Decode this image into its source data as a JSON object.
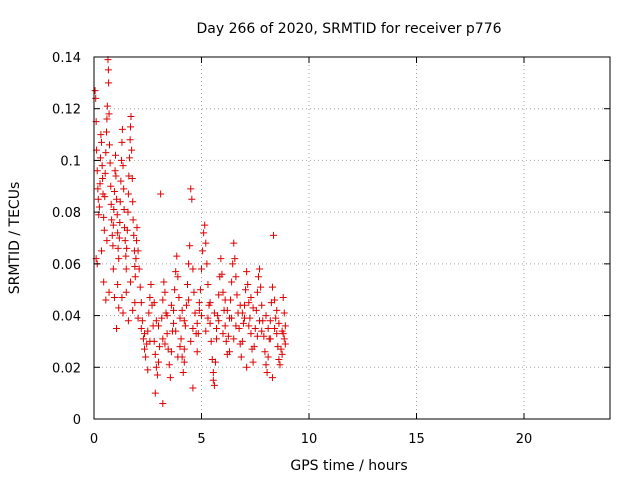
{
  "chart_data": {
    "type": "scatter",
    "title": "Day 266 of 2020, SRMTID for receiver p776",
    "xlabel": "GPS time / hours",
    "ylabel": "SRMTID / TECUs",
    "xlim": [
      0,
      24
    ],
    "ylim": [
      0,
      0.14
    ],
    "xticks": [
      0,
      5,
      10,
      15,
      20
    ],
    "xtick_labels": [
      "0",
      "5",
      "10",
      "15",
      "20"
    ],
    "yticks": [
      0,
      0.02,
      0.04,
      0.06,
      0.08,
      0.1,
      0.12,
      0.14
    ],
    "ytick_labels": [
      "0",
      "0.02",
      "0.04",
      "0.06",
      "0.08",
      "0.1",
      "0.12",
      "0.14"
    ],
    "grid": true,
    "marker": "+",
    "marker_color": "#e00000",
    "series": [
      {
        "name": "SRMTID",
        "points": [
          [
            0.05,
            0.127
          ],
          [
            0.08,
            0.124
          ],
          [
            0.1,
            0.115
          ],
          [
            0.12,
            0.104
          ],
          [
            0.15,
            0.096
          ],
          [
            0.18,
            0.089
          ],
          [
            0.2,
            0.085
          ],
          [
            0.22,
            0.079
          ],
          [
            0.25,
            0.082
          ],
          [
            0.28,
            0.091
          ],
          [
            0.3,
            0.101
          ],
          [
            0.32,
            0.11
          ],
          [
            0.35,
            0.107
          ],
          [
            0.38,
            0.098
          ],
          [
            0.4,
            0.093
          ],
          [
            0.42,
            0.087
          ],
          [
            0.45,
            0.078
          ],
          [
            0.48,
            0.073
          ],
          [
            0.5,
            0.086
          ],
          [
            0.52,
            0.095
          ],
          [
            0.55,
            0.103
          ],
          [
            0.58,
            0.111
          ],
          [
            0.6,
            0.116
          ],
          [
            0.62,
            0.121
          ],
          [
            0.65,
            0.139
          ],
          [
            0.67,
            0.135
          ],
          [
            0.68,
            0.13
          ],
          [
            0.7,
            0.118
          ],
          [
            0.72,
            0.106
          ],
          [
            0.75,
            0.099
          ],
          [
            0.78,
            0.09
          ],
          [
            0.8,
            0.083
          ],
          [
            0.82,
            0.077
          ],
          [
            0.85,
            0.071
          ],
          [
            0.88,
            0.067
          ],
          [
            0.9,
            0.075
          ],
          [
            0.92,
            0.081
          ],
          [
            0.95,
            0.088
          ],
          [
            0.98,
            0.096
          ],
          [
            1.0,
            0.102
          ],
          [
            1.02,
            0.094
          ],
          [
            1.05,
            0.085
          ],
          [
            1.08,
            0.079
          ],
          [
            1.1,
            0.072
          ],
          [
            1.12,
            0.066
          ],
          [
            1.15,
            0.062
          ],
          [
            1.18,
            0.07
          ],
          [
            1.2,
            0.076
          ],
          [
            1.22,
            0.084
          ],
          [
            1.25,
            0.092
          ],
          [
            1.28,
            0.1
          ],
          [
            1.3,
            0.107
          ],
          [
            1.32,
            0.112
          ],
          [
            1.35,
            0.098
          ],
          [
            1.38,
            0.089
          ],
          [
            1.4,
            0.081
          ],
          [
            1.42,
            0.074
          ],
          [
            1.45,
            0.069
          ],
          [
            1.48,
            0.063
          ],
          [
            1.5,
            0.058
          ],
          [
            1.52,
            0.066
          ],
          [
            1.55,
            0.073
          ],
          [
            1.58,
            0.08
          ],
          [
            1.6,
            0.087
          ],
          [
            1.62,
            0.094
          ],
          [
            1.65,
            0.101
          ],
          [
            1.68,
            0.108
          ],
          [
            1.7,
            0.113
          ],
          [
            1.72,
            0.117
          ],
          [
            1.75,
            0.104
          ],
          [
            1.78,
            0.093
          ],
          [
            1.8,
            0.084
          ],
          [
            1.82,
            0.077
          ],
          [
            1.85,
            0.071
          ],
          [
            1.88,
            0.065
          ],
          [
            1.9,
            0.059
          ],
          [
            1.92,
            0.055
          ],
          [
            1.95,
            0.062
          ],
          [
            1.98,
            0.069
          ],
          [
            2.0,
            0.074
          ],
          [
            0.1,
            0.062
          ],
          [
            0.15,
            0.06
          ],
          [
            0.35,
            0.065
          ],
          [
            0.6,
            0.069
          ],
          [
            0.9,
            0.058
          ],
          [
            1.1,
            0.052
          ],
          [
            1.3,
            0.047
          ],
          [
            1.5,
            0.049
          ],
          [
            1.7,
            0.053
          ],
          [
            1.9,
            0.045
          ],
          [
            0.45,
            0.053
          ],
          [
            0.7,
            0.049
          ],
          [
            0.95,
            0.047
          ],
          [
            1.15,
            0.043
          ],
          [
            1.35,
            0.041
          ],
          [
            1.6,
            0.038
          ],
          [
            1.8,
            0.042
          ],
          [
            2.05,
            0.039
          ],
          [
            0.55,
            0.046
          ],
          [
            1.05,
            0.035
          ],
          [
            2.05,
            0.065
          ],
          [
            2.1,
            0.058
          ],
          [
            2.15,
            0.051
          ],
          [
            2.2,
            0.045
          ],
          [
            2.25,
            0.038
          ],
          [
            2.3,
            0.031
          ],
          [
            2.35,
            0.027
          ],
          [
            2.4,
            0.024
          ],
          [
            2.45,
            0.029
          ],
          [
            2.5,
            0.034
          ],
          [
            2.55,
            0.041
          ],
          [
            2.6,
            0.047
          ],
          [
            2.65,
            0.052
          ],
          [
            2.7,
            0.044
          ],
          [
            2.75,
            0.036
          ],
          [
            2.8,
            0.03
          ],
          [
            2.85,
            0.025
          ],
          [
            2.9,
            0.02
          ],
          [
            2.95,
            0.017
          ],
          [
            3.0,
            0.022
          ],
          [
            3.05,
            0.028
          ],
          [
            3.1,
            0.087
          ],
          [
            3.15,
            0.039
          ],
          [
            3.2,
            0.046
          ],
          [
            3.25,
            0.053
          ],
          [
            3.3,
            0.049
          ],
          [
            3.35,
            0.041
          ],
          [
            3.4,
            0.033
          ],
          [
            3.45,
            0.027
          ],
          [
            3.5,
            0.021
          ],
          [
            3.55,
            0.016
          ],
          [
            3.6,
            0.026
          ],
          [
            3.65,
            0.034
          ],
          [
            3.7,
            0.042
          ],
          [
            3.75,
            0.05
          ],
          [
            3.8,
            0.057
          ],
          [
            3.85,
            0.063
          ],
          [
            3.9,
            0.055
          ],
          [
            3.95,
            0.047
          ],
          [
            4.0,
            0.039
          ],
          [
            4.05,
            0.031
          ],
          [
            4.1,
            0.024
          ],
          [
            4.15,
            0.018
          ],
          [
            4.2,
            0.027
          ],
          [
            4.25,
            0.036
          ],
          [
            4.3,
            0.044
          ],
          [
            4.35,
            0.052
          ],
          [
            4.4,
            0.06
          ],
          [
            4.45,
            0.067
          ],
          [
            4.5,
            0.089
          ],
          [
            4.55,
            0.085
          ],
          [
            4.6,
            0.058
          ],
          [
            4.65,
            0.049
          ],
          [
            4.7,
            0.041
          ],
          [
            4.75,
            0.033
          ],
          [
            4.8,
            0.026
          ],
          [
            4.85,
            0.033
          ],
          [
            4.9,
            0.042
          ],
          [
            4.95,
            0.05
          ],
          [
            5.0,
            0.058
          ],
          [
            5.05,
            0.065
          ],
          [
            5.1,
            0.072
          ],
          [
            5.15,
            0.075
          ],
          [
            5.2,
            0.068
          ],
          [
            5.25,
            0.06
          ],
          [
            5.3,
            0.052
          ],
          [
            5.35,
            0.044
          ],
          [
            5.4,
            0.037
          ],
          [
            5.45,
            0.03
          ],
          [
            5.5,
            0.023
          ],
          [
            5.55,
            0.018
          ],
          [
            5.6,
            0.013
          ],
          [
            5.65,
            0.022
          ],
          [
            5.7,
            0.031
          ],
          [
            5.75,
            0.04
          ],
          [
            5.8,
            0.048
          ],
          [
            5.85,
            0.055
          ],
          [
            5.9,
            0.062
          ],
          [
            5.95,
            0.056
          ],
          [
            6.0,
            0.049
          ],
          [
            6.05,
            0.042
          ],
          [
            6.1,
            0.036
          ],
          [
            6.15,
            0.03
          ],
          [
            6.2,
            0.025
          ],
          [
            6.25,
            0.032
          ],
          [
            6.3,
            0.039
          ],
          [
            6.35,
            0.046
          ],
          [
            6.4,
            0.053
          ],
          [
            6.45,
            0.06
          ],
          [
            6.5,
            0.068
          ],
          [
            6.55,
            0.062
          ],
          [
            6.6,
            0.055
          ],
          [
            6.65,
            0.048
          ],
          [
            6.7,
            0.041
          ],
          [
            6.75,
            0.035
          ],
          [
            6.8,
            0.029
          ],
          [
            6.85,
            0.024
          ],
          [
            6.9,
            0.03
          ],
          [
            6.95,
            0.037
          ],
          [
            7.0,
            0.044
          ],
          [
            7.05,
            0.05
          ],
          [
            7.1,
            0.057
          ],
          [
            7.15,
            0.052
          ],
          [
            7.2,
            0.045
          ],
          [
            7.25,
            0.039
          ],
          [
            7.3,
            0.033
          ],
          [
            7.35,
            0.027
          ],
          [
            7.4,
            0.022
          ],
          [
            7.45,
            0.028
          ],
          [
            7.5,
            0.035
          ],
          [
            7.55,
            0.042
          ],
          [
            7.6,
            0.049
          ],
          [
            7.65,
            0.055
          ],
          [
            7.7,
            0.058
          ],
          [
            7.75,
            0.051
          ],
          [
            7.8,
            0.044
          ],
          [
            7.85,
            0.038
          ],
          [
            7.9,
            0.032
          ],
          [
            7.95,
            0.026
          ],
          [
            8.0,
            0.021
          ],
          [
            8.05,
            0.018
          ],
          [
            8.1,
            0.024
          ],
          [
            8.15,
            0.031
          ],
          [
            8.2,
            0.038
          ],
          [
            8.25,
            0.045
          ],
          [
            8.3,
            0.051
          ],
          [
            8.35,
            0.071
          ],
          [
            8.4,
            0.046
          ],
          [
            8.45,
            0.039
          ],
          [
            8.5,
            0.033
          ],
          [
            8.55,
            0.028
          ],
          [
            8.6,
            0.023
          ],
          [
            8.65,
            0.021
          ],
          [
            8.7,
            0.027
          ],
          [
            8.75,
            0.034
          ],
          [
            8.8,
            0.047
          ],
          [
            8.85,
            0.031
          ],
          [
            8.9,
            0.036
          ],
          [
            8.85,
            0.041
          ],
          [
            8.75,
            0.025
          ],
          [
            2.2,
            0.035
          ],
          [
            2.6,
            0.03
          ],
          [
            3.0,
            0.036
          ],
          [
            3.4,
            0.04
          ],
          [
            3.8,
            0.034
          ],
          [
            4.2,
            0.038
          ],
          [
            4.6,
            0.035
          ],
          [
            5.0,
            0.04
          ],
          [
            5.4,
            0.045
          ],
          [
            5.8,
            0.038
          ],
          [
            6.2,
            0.042
          ],
          [
            6.6,
            0.036
          ],
          [
            7.0,
            0.039
          ],
          [
            7.4,
            0.043
          ],
          [
            7.8,
            0.034
          ],
          [
            8.2,
            0.031
          ],
          [
            8.6,
            0.037
          ],
          [
            2.8,
            0.045
          ],
          [
            3.2,
            0.031
          ],
          [
            3.6,
            0.044
          ],
          [
            4.0,
            0.028
          ],
          [
            4.4,
            0.046
          ],
          [
            4.8,
            0.037
          ],
          [
            5.2,
            0.034
          ],
          [
            5.6,
            0.041
          ],
          [
            6.0,
            0.033
          ],
          [
            6.4,
            0.039
          ],
          [
            6.8,
            0.044
          ],
          [
            7.2,
            0.036
          ],
          [
            7.6,
            0.032
          ],
          [
            8.0,
            0.04
          ],
          [
            8.4,
            0.035
          ],
          [
            8.8,
            0.033
          ],
          [
            2.35,
            0.033
          ],
          [
            2.9,
            0.038
          ],
          [
            3.3,
            0.029
          ],
          [
            3.7,
            0.037
          ],
          [
            4.1,
            0.042
          ],
          [
            4.5,
            0.03
          ],
          [
            4.9,
            0.045
          ],
          [
            5.3,
            0.039
          ],
          [
            5.7,
            0.035
          ],
          [
            6.1,
            0.046
          ],
          [
            6.5,
            0.031
          ],
          [
            6.9,
            0.041
          ],
          [
            7.3,
            0.047
          ],
          [
            7.7,
            0.038
          ],
          [
            8.1,
            0.035
          ],
          [
            8.5,
            0.042
          ],
          [
            8.9,
            0.029
          ],
          [
            3.2,
            0.006
          ],
          [
            2.85,
            0.01
          ],
          [
            4.6,
            0.012
          ],
          [
            2.5,
            0.019
          ],
          [
            5.55,
            0.015
          ],
          [
            4.2,
            0.022
          ],
          [
            6.3,
            0.026
          ],
          [
            7.1,
            0.02
          ],
          [
            8.3,
            0.016
          ],
          [
            3.9,
            0.024
          ]
        ]
      }
    ]
  }
}
